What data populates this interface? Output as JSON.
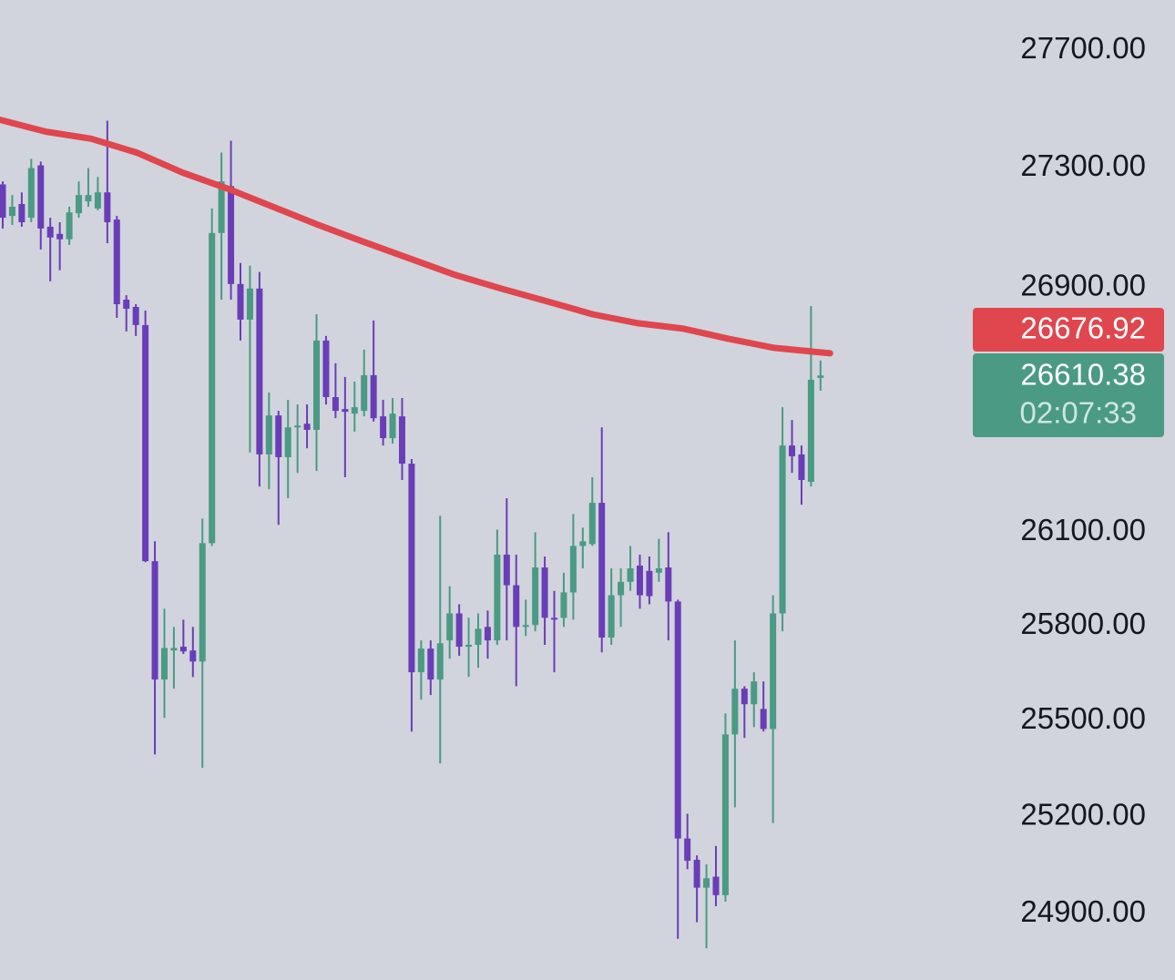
{
  "chart_data": {
    "type": "candlestick",
    "log_scale": true,
    "ylim": [
      24697,
      27872
    ],
    "yticks": [
      {
        "value": 27700,
        "label": "27700.00"
      },
      {
        "value": 27300,
        "label": "27300.00"
      },
      {
        "value": 26900,
        "label": "26900.00"
      },
      {
        "value": 26100,
        "label": "26100.00"
      },
      {
        "value": 25800,
        "label": "25800.00"
      },
      {
        "value": 25500,
        "label": "25500.00"
      },
      {
        "value": 25200,
        "label": "25200.00"
      },
      {
        "value": 24900,
        "label": "24900.00"
      }
    ],
    "up_color": "#4a9a84",
    "down_color": "#6a3db8",
    "open": [
      27245,
      27139,
      27179,
      27133,
      27309,
      27103,
      27079,
      27061,
      27148,
      27188,
      27164,
      27218,
      27127,
      26860,
      26836,
      26776,
      26007,
      25630,
      25722,
      25734,
      25722,
      25687,
      26065,
      27082,
      27239,
      26912,
      26794,
      26897,
      26352,
      26479,
      26343,
      26440,
      26452,
      26432,
      26725,
      26539,
      26500,
      26485,
      26494,
      26611,
      26476,
      26405,
      26476,
      26322,
      25653,
      25728,
      25630,
      25754,
      25840,
      25734,
      25740,
      25797,
      25754,
      26028,
      25930,
      25797,
      25803,
      25987,
      25826,
      25826,
      25907,
      26056,
      26062,
      26195,
      25763,
      25898,
      25941,
      25993,
      25976,
      25970,
      25987,
      25878,
      25132,
      25066,
      24980,
      25014,
      24957,
      25457,
      25601,
      25552,
      25537,
      25474,
      25840,
      26381,
      26352,
      26263,
      26602
    ],
    "high": [
      27255,
      27209,
      27218,
      27331,
      27322,
      27133,
      27118,
      27170,
      27255,
      27300,
      27270,
      27460,
      27139,
      26875,
      26845,
      26824,
      26071,
      25855,
      25797,
      25820,
      25797,
      26144,
      27164,
      27352,
      27392,
      26982,
      26973,
      26952,
      26554,
      26494,
      26530,
      26515,
      26515,
      26812,
      26740,
      26650,
      26605,
      26590,
      26695,
      26791,
      26530,
      26536,
      26536,
      26337,
      25754,
      25754,
      26153,
      25927,
      25869,
      25826,
      25840,
      25849,
      26109,
      26210,
      26028,
      25884,
      26100,
      26022,
      25912,
      25970,
      26159,
      26115,
      26278,
      26440,
      25984,
      25984,
      26056,
      26028,
      26022,
      26079,
      26100,
      25884,
      25209,
      25080,
      25052,
      25109,
      25523,
      25754,
      25609,
      25653,
      25624,
      25898,
      26506,
      26464,
      26381,
      26839,
      26659
    ],
    "low": [
      27097,
      27109,
      27103,
      27118,
      27027,
      26921,
      26958,
      27042,
      27133,
      27170,
      27158,
      27048,
      26800,
      26755,
      26740,
      26004,
      25394,
      25509,
      25601,
      25711,
      25638,
      25352,
      26056,
      26860,
      26860,
      26725,
      26358,
      26248,
      26239,
      26124,
      26210,
      26292,
      26372,
      26298,
      26515,
      26470,
      26278,
      26426,
      26476,
      26459,
      26381,
      26387,
      26269,
      25466,
      25566,
      25581,
      25366,
      25696,
      25705,
      25638,
      25667,
      25696,
      25740,
      25754,
      25609,
      25768,
      25783,
      25740,
      25653,
      25797,
      25820,
      25984,
      26056,
      25716,
      25740,
      25797,
      25912,
      25855,
      25869,
      25941,
      25754,
      24823,
      25037,
      24874,
      24794,
      24923,
      24937,
      25229,
      25446,
      25480,
      25466,
      25180,
      25783,
      26292,
      26189,
      26248,
      26560
    ],
    "close": [
      27133,
      27170,
      27118,
      27300,
      27097,
      27067,
      27061,
      27151,
      27209,
      27209,
      27218,
      27118,
      26845,
      26830,
      26776,
      26007,
      25630,
      25730,
      25730,
      25719,
      25687,
      26065,
      27082,
      27255,
      26912,
      26794,
      26897,
      26352,
      26479,
      26343,
      26440,
      26446,
      26432,
      26725,
      26539,
      26494,
      26491,
      26506,
      26611,
      26470,
      26405,
      26485,
      26322,
      25653,
      25728,
      25630,
      25745,
      25840,
      25734,
      25740,
      25791,
      25754,
      26028,
      25930,
      25797,
      25803,
      25987,
      25826,
      25820,
      25907,
      26056,
      26071,
      26195,
      25763,
      25898,
      25941,
      25984,
      25898,
      25895,
      25984,
      25878,
      25132,
      25063,
      24980,
      25009,
      24957,
      25457,
      25601,
      25552,
      25624,
      25474,
      25840,
      26381,
      26346,
      26269,
      26596,
      26610
    ],
    "ma": {
      "color": "#e0464d",
      "x": [
        -0.3,
        4.5,
        9.3,
        14.1,
        18.9,
        23.7,
        28.4,
        33.2,
        38,
        42.8,
        47.6,
        52.4,
        57.2,
        62,
        66.8,
        71.6,
        76.3,
        81.1,
        87
      ],
      "values": [
        27463,
        27423,
        27399,
        27352,
        27285,
        27230,
        27170,
        27109,
        27052,
        26997,
        26942,
        26897,
        26855,
        26812,
        26782,
        26764,
        26731,
        26701,
        26683
      ]
    },
    "ma_price_label": "26676.92",
    "last_price_label": "26610.38",
    "countdown": "02:07:33"
  }
}
